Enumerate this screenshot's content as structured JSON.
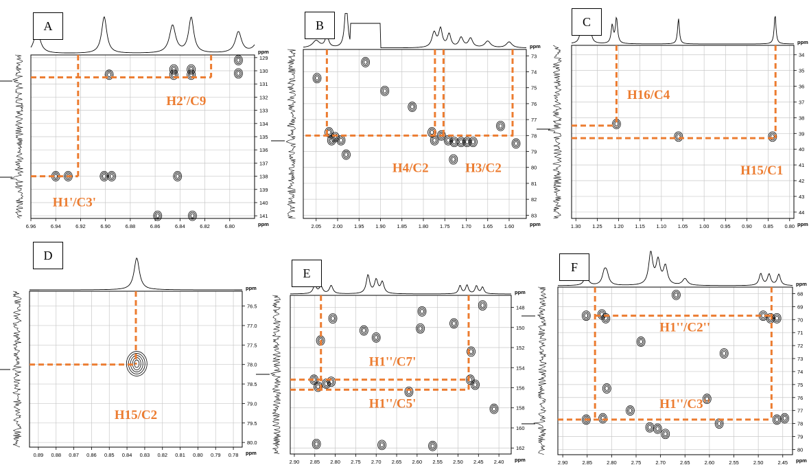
{
  "colors": {
    "guide": "#ec7c30",
    "annotation": "#ec7c30",
    "contour": "#000000",
    "grid": "#c8c8c8"
  },
  "unit": "ppm",
  "chart_data": [
    {
      "type": "scatter",
      "panel": "A",
      "x_ticks": [
        "6.96",
        "6.94",
        "6.92",
        "6.90",
        "6.88",
        "6.86",
        "6.84",
        "6.82",
        "6.80"
      ],
      "y_ticks": [
        "129",
        "130",
        "131",
        "132",
        "133",
        "134",
        "135",
        "136",
        "137",
        "138",
        "139",
        "140",
        "141"
      ],
      "xlim": [
        6.96,
        6.78
      ],
      "ylim": [
        128.8,
        141.2
      ],
      "cross_peaks": [
        {
          "x": 6.94,
          "y": 138.0
        },
        {
          "x": 6.93,
          "y": 138.0
        },
        {
          "x": 6.901,
          "y": 138.0
        },
        {
          "x": 6.895,
          "y": 138.0
        },
        {
          "x": 6.897,
          "y": 130.3
        },
        {
          "x": 6.845,
          "y": 129.9
        },
        {
          "x": 6.845,
          "y": 130.3
        },
        {
          "x": 6.831,
          "y": 130.3
        },
        {
          "x": 6.831,
          "y": 129.9
        },
        {
          "x": 6.842,
          "y": 138.0
        },
        {
          "x": 6.793,
          "y": 129.2
        },
        {
          "x": 6.793,
          "y": 130.2
        },
        {
          "x": 6.858,
          "y": 141.0
        },
        {
          "x": 6.83,
          "y": 141.0
        }
      ],
      "guides": [
        {
          "orient": "h",
          "at": 130.5,
          "from": 6.96,
          "to": 6.815
        },
        {
          "orient": "v",
          "at": 6.815,
          "from": 128.8,
          "to": 130.5
        },
        {
          "orient": "v",
          "at": 6.922,
          "from": 128.8,
          "to": 138.0
        },
        {
          "orient": "h",
          "at": 138.0,
          "from": 6.96,
          "to": 6.922
        }
      ],
      "labels": [
        {
          "text": "H2'/C9",
          "x": 6.835,
          "y": 132.6
        },
        {
          "text": "H1'/C3'",
          "x": 6.925,
          "y": 140.3
        }
      ]
    },
    {
      "type": "scatter",
      "panel": "B",
      "x_ticks": [
        "2.05",
        "2.00",
        "1.95",
        "1.90",
        "1.85",
        "1.80",
        "1.75",
        "1.70",
        "1.65",
        "1.60"
      ],
      "y_ticks": [
        "73",
        "74",
        "75",
        "76",
        "77",
        "78",
        "79",
        "80",
        "81",
        "82",
        "83"
      ],
      "xlim": [
        2.08,
        1.56
      ],
      "ylim": [
        72.6,
        83.2
      ],
      "cross_peaks": [
        {
          "x": 2.048,
          "y": 74.4
        },
        {
          "x": 2.02,
          "y": 77.8
        },
        {
          "x": 2.014,
          "y": 78.3
        },
        {
          "x": 2.006,
          "y": 78.1
        },
        {
          "x": 1.992,
          "y": 78.3
        },
        {
          "x": 1.935,
          "y": 73.4
        },
        {
          "x": 1.89,
          "y": 75.2
        },
        {
          "x": 1.78,
          "y": 77.8
        },
        {
          "x": 1.774,
          "y": 78.3
        },
        {
          "x": 1.758,
          "y": 78.0
        },
        {
          "x": 1.742,
          "y": 78.3
        },
        {
          "x": 1.728,
          "y": 78.4
        },
        {
          "x": 1.712,
          "y": 78.4
        },
        {
          "x": 1.698,
          "y": 78.4
        },
        {
          "x": 1.684,
          "y": 78.4
        },
        {
          "x": 1.62,
          "y": 77.4
        },
        {
          "x": 1.584,
          "y": 78.5
        },
        {
          "x": 1.98,
          "y": 79.2
        },
        {
          "x": 1.73,
          "y": 79.5
        },
        {
          "x": 1.826,
          "y": 76.2
        }
      ],
      "guides": [
        {
          "orient": "h",
          "at": 78.0,
          "from": 2.075,
          "to": 1.59
        },
        {
          "orient": "v",
          "at": 2.025,
          "from": 72.6,
          "to": 78.0
        },
        {
          "orient": "v",
          "at": 1.773,
          "from": 72.6,
          "to": 78.0
        },
        {
          "orient": "v",
          "at": 1.753,
          "from": 72.6,
          "to": 78.0
        },
        {
          "orient": "v",
          "at": 1.592,
          "from": 72.6,
          "to": 78.0
        }
      ],
      "labels": [
        {
          "text": "H4/C2",
          "x": 1.83,
          "y": 80.3
        },
        {
          "text": "H3/C2",
          "x": 1.66,
          "y": 80.3
        }
      ]
    },
    {
      "type": "scatter",
      "panel": "C",
      "x_ticks": [
        "1.30",
        "1.25",
        "1.20",
        "1.15",
        "1.10",
        "1.05",
        "1.00",
        "0.95",
        "0.90",
        "0.85",
        "0.80"
      ],
      "y_ticks": [
        "34",
        "35",
        "36",
        "37",
        "38",
        "39",
        "40",
        "41",
        "42",
        "43",
        "44"
      ],
      "xlim": [
        1.31,
        0.79
      ],
      "ylim": [
        33.4,
        44.4
      ],
      "cross_peaks": [
        {
          "x": 1.205,
          "y": 38.4
        },
        {
          "x": 1.06,
          "y": 39.2
        },
        {
          "x": 0.84,
          "y": 39.2
        }
      ],
      "guides": [
        {
          "orient": "h",
          "at": 38.5,
          "from": 1.31,
          "to": 1.205
        },
        {
          "orient": "v",
          "at": 1.205,
          "from": 33.4,
          "to": 38.5
        },
        {
          "orient": "h",
          "at": 39.3,
          "from": 1.31,
          "to": 0.833
        },
        {
          "orient": "v",
          "at": 0.833,
          "from": 33.4,
          "to": 39.3
        }
      ],
      "labels": [
        {
          "text": "H16/C4",
          "x": 1.13,
          "y": 36.8
        },
        {
          "text": "H15/C1",
          "x": 0.865,
          "y": 41.6
        }
      ]
    },
    {
      "type": "scatter",
      "panel": "D",
      "x_ticks": [
        "0.89",
        "0.88",
        "0.87",
        "0.86",
        "0.85",
        "0.84",
        "0.83",
        "0.82",
        "0.81",
        "0.80",
        "0.79",
        "0.78"
      ],
      "y_ticks": [
        "76.5",
        "77.0",
        "77.5",
        "78.0",
        "78.5",
        "79.0",
        "79.5",
        "80.0"
      ],
      "xlim": [
        0.895,
        0.775
      ],
      "ylim": [
        76.12,
        80.12
      ],
      "cross_peaks": [
        {
          "x": 0.8345,
          "y": 77.98
        }
      ],
      "guides": [
        {
          "orient": "h",
          "at": 78.0,
          "from": 0.895,
          "to": 0.835
        },
        {
          "orient": "v",
          "at": 0.835,
          "from": 76.12,
          "to": 78.0
        }
      ],
      "labels": [
        {
          "text": "H15/C2",
          "x": 0.835,
          "y": 79.4
        }
      ]
    },
    {
      "type": "scatter",
      "panel": "E",
      "x_ticks": [
        "2.90",
        "2.85",
        "2.80",
        "2.75",
        "2.70",
        "2.65",
        "2.60",
        "2.55",
        "2.50",
        "2.45",
        "2.40"
      ],
      "y_ticks": [
        "148",
        "150",
        "152",
        "154",
        "156",
        "158",
        "160",
        "162"
      ],
      "xlim": [
        2.91,
        2.37
      ],
      "ylim": [
        146.8,
        162.6
      ],
      "cross_peaks": [
        {
          "x": 2.852,
          "y": 155.2
        },
        {
          "x": 2.842,
          "y": 155.9
        },
        {
          "x": 2.822,
          "y": 155.6
        },
        {
          "x": 2.81,
          "y": 155.4
        },
        {
          "x": 2.47,
          "y": 155.2
        },
        {
          "x": 2.458,
          "y": 155.7
        },
        {
          "x": 2.806,
          "y": 149.1
        },
        {
          "x": 2.73,
          "y": 150.3
        },
        {
          "x": 2.7,
          "y": 151.0
        },
        {
          "x": 2.588,
          "y": 148.4
        },
        {
          "x": 2.592,
          "y": 150.1
        },
        {
          "x": 2.51,
          "y": 149.6
        },
        {
          "x": 2.468,
          "y": 152.4
        },
        {
          "x": 2.44,
          "y": 147.8
        },
        {
          "x": 2.846,
          "y": 161.6
        },
        {
          "x": 2.686,
          "y": 161.7
        },
        {
          "x": 2.562,
          "y": 161.8
        },
        {
          "x": 2.836,
          "y": 151.3
        },
        {
          "x": 2.62,
          "y": 156.4
        },
        {
          "x": 2.412,
          "y": 158.1
        }
      ],
      "guides": [
        {
          "orient": "v",
          "at": 2.835,
          "from": 146.8,
          "to": 156.2
        },
        {
          "orient": "v",
          "at": 2.474,
          "from": 146.8,
          "to": 156.2
        },
        {
          "orient": "h",
          "at": 155.2,
          "from": 2.91,
          "to": 2.474
        },
        {
          "orient": "h",
          "at": 156.2,
          "from": 2.91,
          "to": 2.474
        }
      ],
      "labels": [
        {
          "text": "H1''/C7'",
          "x": 2.66,
          "y": 153.8
        },
        {
          "text": "H1''/C5'",
          "x": 2.66,
          "y": 158.0
        }
      ]
    },
    {
      "type": "scatter",
      "panel": "F",
      "x_ticks": [
        "2.90",
        "2.85",
        "2.80",
        "2.75",
        "2.70",
        "2.65",
        "2.60",
        "2.55",
        "2.50",
        "2.45"
      ],
      "y_ticks": [
        "68",
        "69",
        "70",
        "71",
        "72",
        "73",
        "74",
        "75",
        "76",
        "77",
        "78",
        "79",
        "80"
      ],
      "xlim": [
        2.91,
        2.43
      ],
      "ylim": [
        67.5,
        80.4
      ],
      "cross_peaks": [
        {
          "x": 2.852,
          "y": 69.7
        },
        {
          "x": 2.82,
          "y": 69.6
        },
        {
          "x": 2.812,
          "y": 69.9
        },
        {
          "x": 2.49,
          "y": 69.7
        },
        {
          "x": 2.475,
          "y": 69.9
        },
        {
          "x": 2.462,
          "y": 69.9
        },
        {
          "x": 2.852,
          "y": 77.7
        },
        {
          "x": 2.818,
          "y": 77.6
        },
        {
          "x": 2.762,
          "y": 77.0
        },
        {
          "x": 2.722,
          "y": 78.3
        },
        {
          "x": 2.706,
          "y": 78.4
        },
        {
          "x": 2.69,
          "y": 78.8
        },
        {
          "x": 2.462,
          "y": 77.7
        },
        {
          "x": 2.446,
          "y": 77.6
        },
        {
          "x": 2.668,
          "y": 68.1
        },
        {
          "x": 2.74,
          "y": 71.7
        },
        {
          "x": 2.57,
          "y": 72.6
        },
        {
          "x": 2.605,
          "y": 76.1
        },
        {
          "x": 2.81,
          "y": 75.3
        },
        {
          "x": 2.58,
          "y": 78.0
        }
      ],
      "guides": [
        {
          "orient": "v",
          "at": 2.834,
          "from": 67.5,
          "to": 77.7
        },
        {
          "orient": "v",
          "at": 2.473,
          "from": 67.5,
          "to": 77.7
        },
        {
          "orient": "h",
          "at": 69.7,
          "from": 2.834,
          "to": 2.473
        },
        {
          "orient": "h",
          "at": 77.7,
          "from": 2.91,
          "to": 2.473
        }
      ],
      "labels": [
        {
          "text": "H1''/C2''",
          "x": 2.65,
          "y": 70.9
        },
        {
          "text": "H1''/C3''",
          "x": 2.65,
          "y": 76.8
        }
      ]
    }
  ]
}
